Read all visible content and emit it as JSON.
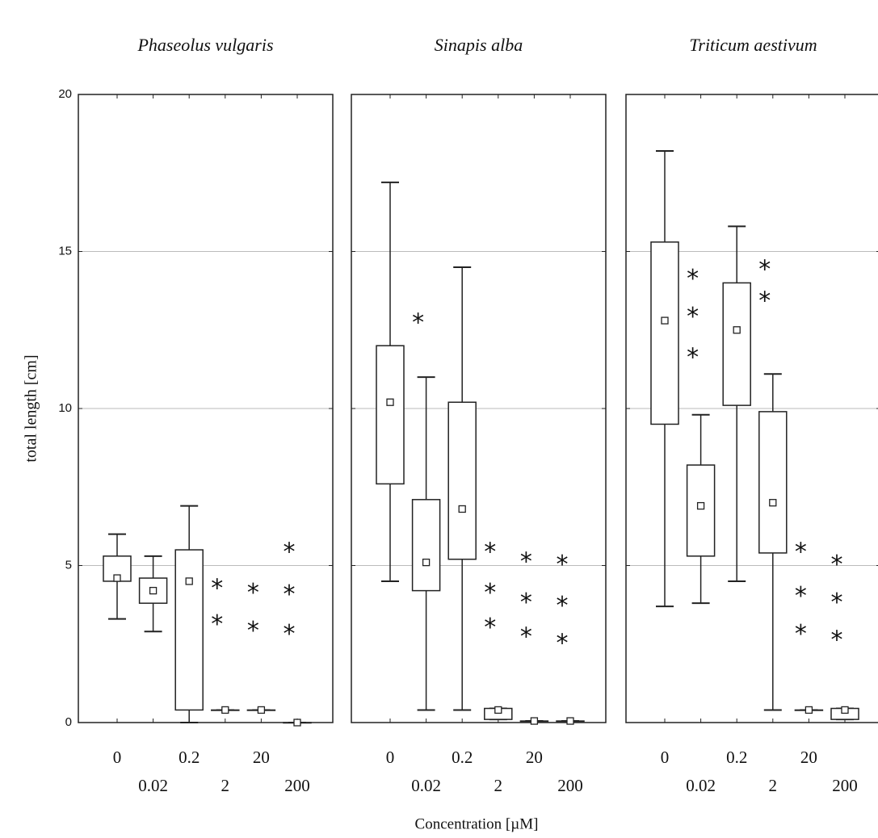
{
  "y_label": "total length [cm]",
  "x_label": "Concentration [µM]",
  "chart_data": [
    {
      "type": "box",
      "title": "Phaseolus vulgaris",
      "categories": [
        "0",
        "0.02",
        "0.2",
        "2",
        "20",
        "200"
      ],
      "min": [
        3.3,
        2.9,
        0,
        0.4,
        0.4,
        0
      ],
      "q1": [
        4.5,
        3.8,
        0.4,
        0.4,
        0.4,
        0
      ],
      "median": [
        4.6,
        4.2,
        4.5,
        0.4,
        0.4,
        0
      ],
      "q3": [
        5.3,
        4.6,
        5.5,
        0.4,
        0.4,
        0
      ],
      "max": [
        6.0,
        5.3,
        6.9,
        0.4,
        0.4,
        0
      ],
      "annotations": [
        {
          "x": "2",
          "y": 4.45,
          "text": "*"
        },
        {
          "x": "2",
          "y": 3.3,
          "text": "*"
        },
        {
          "x": "20",
          "y": 4.3,
          "text": "*"
        },
        {
          "x": "20",
          "y": 3.1,
          "text": "*"
        },
        {
          "x": "200",
          "y": 5.6,
          "text": "*"
        },
        {
          "x": "200",
          "y": 4.25,
          "text": "*"
        },
        {
          "x": "200",
          "y": 3.0,
          "text": "*"
        }
      ],
      "ylim": [
        0,
        20
      ],
      "yticks": [
        0,
        5,
        10,
        15,
        20
      ],
      "grid": true
    },
    {
      "type": "box",
      "title": "Sinapis alba",
      "categories": [
        "0",
        "0.02",
        "0.2",
        "2",
        "20",
        "200"
      ],
      "min": [
        4.5,
        0.4,
        0.4,
        0.1,
        0.05,
        0.05
      ],
      "q1": [
        7.6,
        4.2,
        5.2,
        0.1,
        0.05,
        0.05
      ],
      "median": [
        10.2,
        5.1,
        6.8,
        0.4,
        0.05,
        0.05
      ],
      "q3": [
        12.0,
        7.1,
        10.2,
        0.45,
        0.05,
        0.05
      ],
      "max": [
        17.2,
        11.0,
        14.5,
        0.45,
        0.05,
        0.05
      ],
      "annotations": [
        {
          "x": "0.02",
          "y": 12.9,
          "text": "*"
        },
        {
          "x": "2",
          "y": 5.6,
          "text": "*"
        },
        {
          "x": "2",
          "y": 4.3,
          "text": "*"
        },
        {
          "x": "2",
          "y": 3.2,
          "text": "*"
        },
        {
          "x": "20",
          "y": 5.3,
          "text": "*"
        },
        {
          "x": "20",
          "y": 4.0,
          "text": "*"
        },
        {
          "x": "20",
          "y": 2.9,
          "text": "*"
        },
        {
          "x": "200",
          "y": 5.2,
          "text": "*"
        },
        {
          "x": "200",
          "y": 3.9,
          "text": "*"
        },
        {
          "x": "200",
          "y": 2.7,
          "text": "*"
        }
      ],
      "ylim": [
        0,
        20
      ],
      "yticks": [
        0,
        5,
        10,
        15,
        20
      ],
      "grid": true
    },
    {
      "type": "box",
      "title": "Triticum aestivum",
      "categories": [
        "0",
        "0.02",
        "0.2",
        "2",
        "20",
        "200"
      ],
      "min": [
        3.7,
        3.8,
        4.5,
        0.4,
        0.4,
        0.1
      ],
      "q1": [
        9.5,
        5.3,
        10.1,
        5.4,
        0.4,
        0.1
      ],
      "median": [
        12.8,
        6.9,
        12.5,
        7.0,
        0.4,
        0.4
      ],
      "q3": [
        15.3,
        8.2,
        14.0,
        9.9,
        0.4,
        0.45
      ],
      "max": [
        18.2,
        9.8,
        15.8,
        11.1,
        0.4,
        0.45
      ],
      "annotations": [
        {
          "x": "0.02",
          "y": 14.3,
          "text": "*"
        },
        {
          "x": "0.02",
          "y": 13.1,
          "text": "*"
        },
        {
          "x": "0.02",
          "y": 11.8,
          "text": "*"
        },
        {
          "x": "2",
          "y": 14.6,
          "text": "*"
        },
        {
          "x": "2",
          "y": 13.6,
          "text": "*"
        },
        {
          "x": "20",
          "y": 5.6,
          "text": "*"
        },
        {
          "x": "20",
          "y": 4.2,
          "text": "*"
        },
        {
          "x": "20",
          "y": 3.0,
          "text": "*"
        },
        {
          "x": "200",
          "y": 5.2,
          "text": "*"
        },
        {
          "x": "200",
          "y": 4.0,
          "text": "*"
        },
        {
          "x": "200",
          "y": 2.8,
          "text": "*"
        }
      ],
      "ylim": [
        0,
        20
      ],
      "yticks": [
        0,
        5,
        10,
        15,
        20
      ],
      "grid": true
    }
  ]
}
